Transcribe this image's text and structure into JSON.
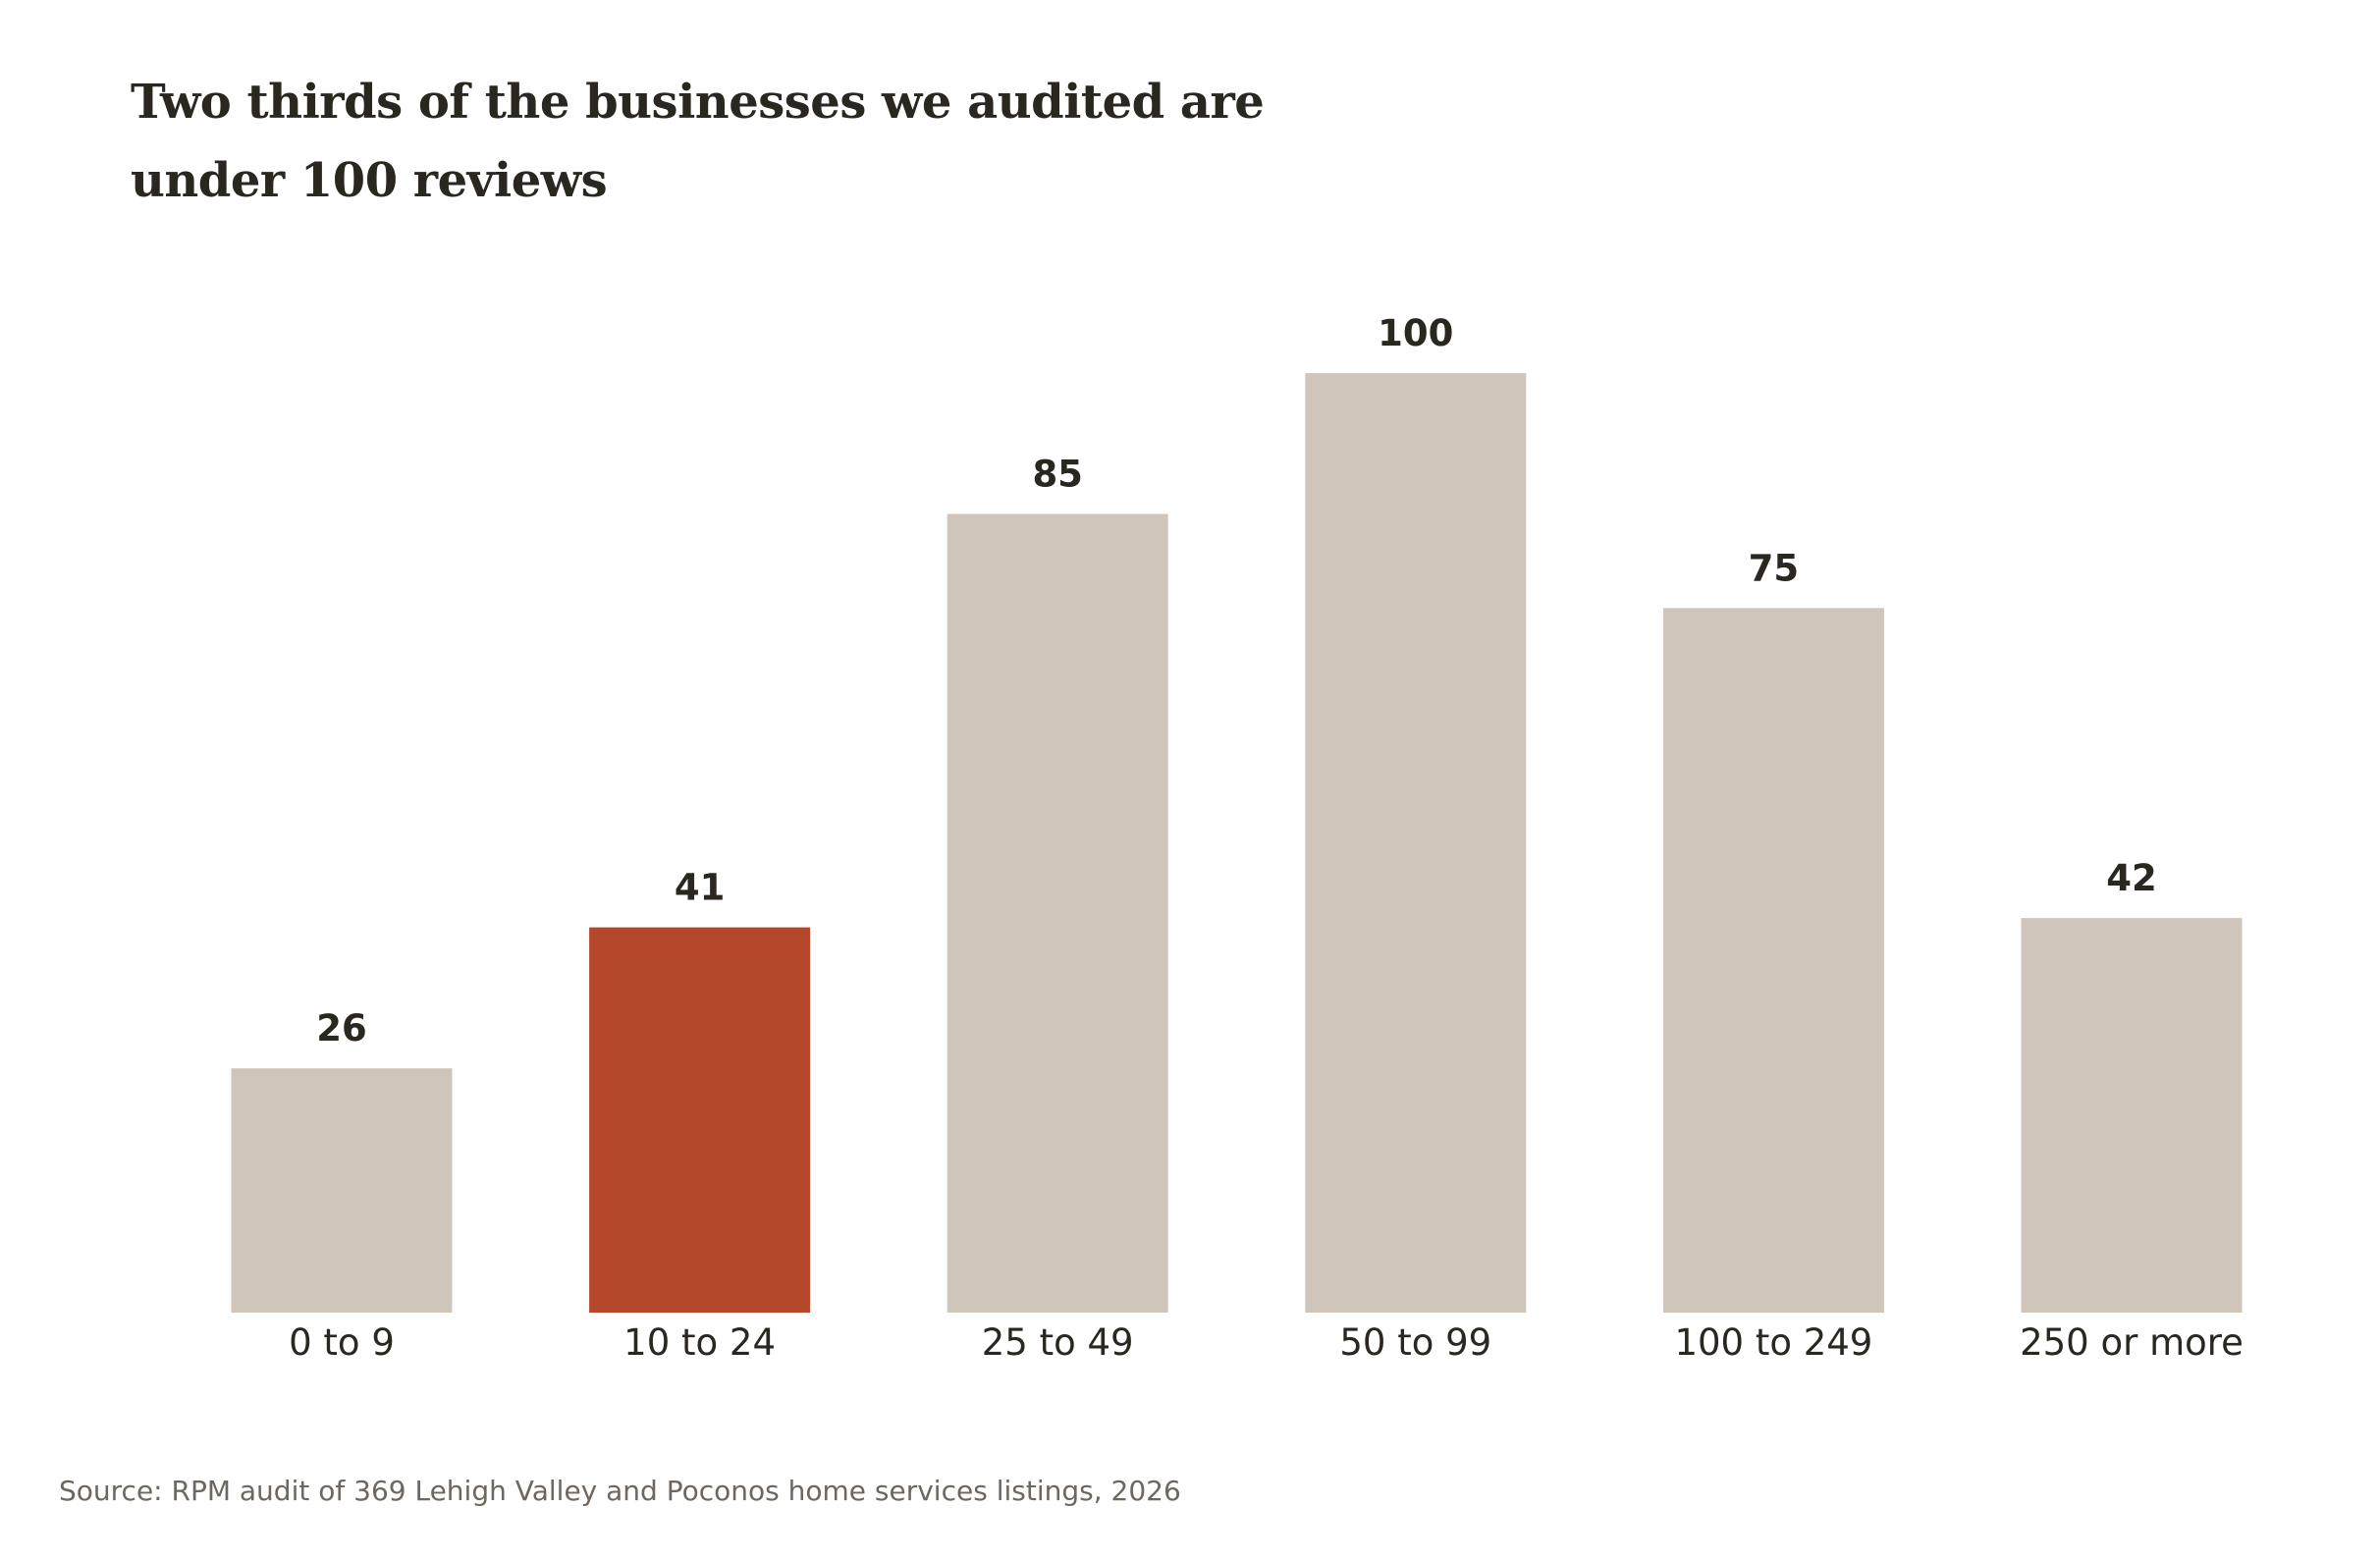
{
  "colors": {
    "bar_default": "#d0c5bb",
    "bar_highlight": "#b5482a",
    "text": "#2a2620",
    "source_text": "#6e6760"
  },
  "chart_data": {
    "type": "bar",
    "title": "Two thirds of the businesses we audited are under 100 reviews",
    "xlabel": "",
    "ylabel": "",
    "categories": [
      "0 to 9",
      "10 to 24",
      "25 to 49",
      "50 to 99",
      "100 to 249",
      "250 or more"
    ],
    "values": [
      26,
      41,
      85,
      100,
      75,
      42
    ],
    "highlight_index": 1,
    "ylim": [
      0,
      100
    ],
    "grid": false,
    "legend": "none",
    "data_labels": true
  },
  "source": "Source: RPM audit of 369 Lehigh Valley and Poconos home services listings, 2026"
}
